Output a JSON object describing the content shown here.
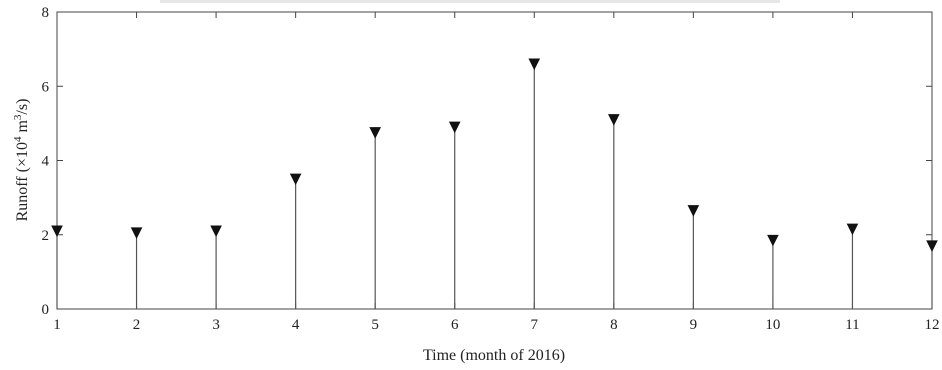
{
  "chart_data": {
    "type": "stem",
    "title": "",
    "xlabel": "Time (month of 2016)",
    "ylabel": "Runoff (×10",
    "ylabel_exp1": "4",
    "ylabel_mid": " m",
    "ylabel_exp2": "3",
    "ylabel_end": "/s)",
    "xlim": [
      1,
      12
    ],
    "ylim": [
      0,
      8
    ],
    "x_ticks": [
      "1",
      "2",
      "3",
      "4",
      "5",
      "6",
      "7",
      "8",
      "9",
      "10",
      "11",
      "12"
    ],
    "y_ticks": [
      "0",
      "2",
      "4",
      "6",
      "8"
    ],
    "grid": false,
    "marker": "downward-triangle",
    "x": [
      1,
      2,
      3,
      4,
      5,
      6,
      7,
      8,
      9,
      10,
      11,
      12
    ],
    "values": [
      2.1,
      2.05,
      2.1,
      3.5,
      4.75,
      4.9,
      6.6,
      5.1,
      2.65,
      1.85,
      2.15,
      1.7
    ]
  }
}
